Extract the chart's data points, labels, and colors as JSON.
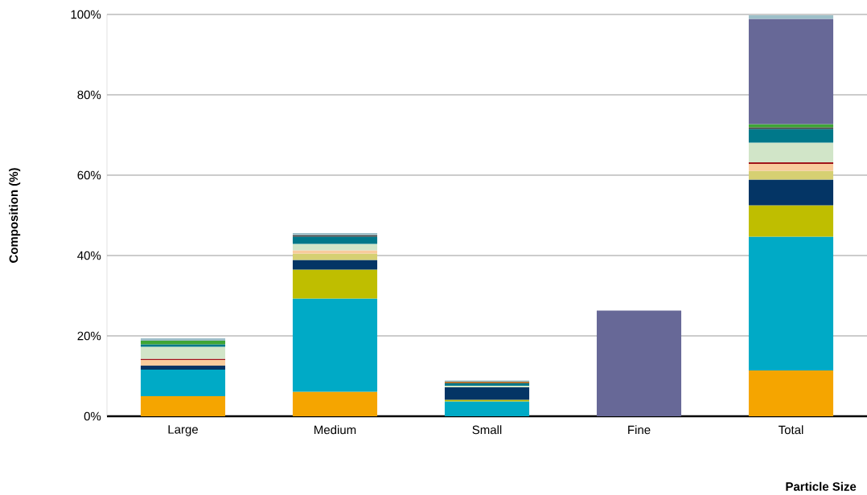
{
  "chart_data": {
    "type": "bar",
    "stacked": true,
    "xlabel": "Particle Size",
    "ylabel": "Composition (%)",
    "categories": [
      "Large",
      "Medium",
      "Small",
      "Fine",
      "Total"
    ],
    "series": [
      {
        "color": "#f5a500",
        "values": [
          5.0,
          6.1,
          null,
          null,
          11.4
        ]
      },
      {
        "color": "#00aac6",
        "values": [
          6.6,
          23.2,
          3.7,
          null,
          33.3
        ]
      },
      {
        "color": "#bfbe00",
        "values": [
          null,
          7.2,
          0.4,
          null,
          7.8
        ]
      },
      {
        "color": "#043565",
        "values": [
          1.0,
          2.4,
          3.1,
          null,
          6.4
        ]
      },
      {
        "color": "#d6d072",
        "values": [
          null,
          1.6,
          null,
          null,
          2.2
        ]
      },
      {
        "color": "#f9cb9c",
        "values": [
          1.4,
          0.8,
          null,
          null,
          1.7
        ]
      },
      {
        "color": "#a0141a",
        "values": [
          0.3,
          null,
          null,
          null,
          0.4
        ]
      },
      {
        "color": "#d1e5c8",
        "values": [
          3.0,
          1.6,
          0.4,
          null,
          4.9
        ]
      },
      {
        "color": "#00788a",
        "values": [
          0.6,
          1.8,
          0.6,
          null,
          3.4
        ]
      },
      {
        "color": "#b07030",
        "values": [
          null,
          null,
          0.4,
          null,
          null
        ]
      },
      {
        "color": "#404040",
        "values": [
          null,
          0.4,
          null,
          null,
          0.4
        ]
      },
      {
        "color": "#3ea535",
        "values": [
          0.9,
          null,
          null,
          null,
          0.8
        ]
      },
      {
        "color": "#676897",
        "values": [
          null,
          null,
          null,
          26.3,
          26.2
        ]
      },
      {
        "color": "#9dbfc8",
        "values": [
          0.6,
          0.5,
          0.3,
          null,
          0.9
        ]
      }
    ],
    "ylim": [
      0,
      100
    ],
    "yticks": [
      {
        "value": 0,
        "label": "0%"
      },
      {
        "value": 20,
        "label": "20%"
      },
      {
        "value": 40,
        "label": "40%"
      },
      {
        "value": 60,
        "label": "60%"
      },
      {
        "value": 80,
        "label": "80%"
      },
      {
        "value": 100,
        "label": "100%"
      }
    ],
    "grid": "y"
  }
}
